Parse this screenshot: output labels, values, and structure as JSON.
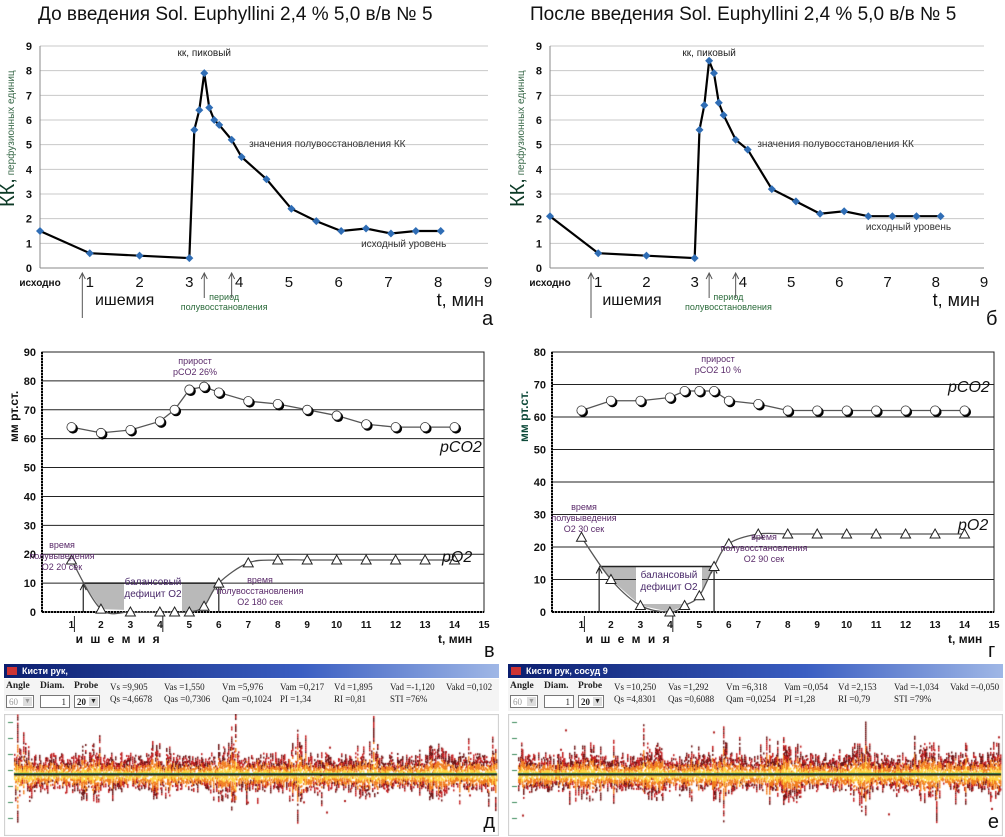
{
  "titles": {
    "left": "До введения Sol. Euphyllini 2,4 % 5,0 в/в № 5",
    "right": "После введения Sol. Euphyllini 2,4 % 5,0 в/в № 5"
  },
  "chart_data": [
    {
      "id": "a",
      "type": "line",
      "panel_letter": "а",
      "ylabel": "КК,",
      "ylabel_sub": "перфузионных единиц",
      "xlabel": "t, мин",
      "ylim": [
        0,
        9
      ],
      "xlim": [
        0,
        9
      ],
      "yticks": [
        "0",
        "1",
        "2",
        "3",
        "4",
        "5",
        "6",
        "7",
        "8",
        "9"
      ],
      "xticks": [
        "исходно",
        "1",
        "2",
        "3",
        "4",
        "5",
        "6",
        "7",
        "8",
        "9"
      ],
      "grid": true,
      "x": [
        0,
        1,
        2,
        3,
        3.1,
        3.2,
        3.3,
        3.4,
        3.5,
        3.6,
        3.85,
        4.05,
        4.55,
        5.05,
        5.55,
        6.05,
        6.55,
        7.05,
        7.55,
        8.05
      ],
      "y": [
        1.5,
        0.6,
        0.5,
        0.4,
        5.6,
        6.4,
        7.9,
        6.5,
        6.0,
        5.8,
        5.2,
        4.5,
        3.6,
        2.4,
        1.9,
        1.5,
        1.6,
        1.4,
        1.5,
        1.5
      ],
      "annotations": {
        "peak": "кк, пиковый",
        "half": "значения полувосстановления КК",
        "baseline": "исходный уровень",
        "ischemia": "ишемия",
        "period1": "период",
        "period2": "полувосстановления"
      }
    },
    {
      "id": "b",
      "type": "line",
      "panel_letter": "б",
      "ylabel": "КК,",
      "ylabel_sub": "перфузионных единиц",
      "xlabel": "t, мин",
      "ylim": [
        0,
        9
      ],
      "xlim": [
        0,
        9
      ],
      "yticks": [
        "0",
        "1",
        "2",
        "3",
        "4",
        "5",
        "6",
        "7",
        "8",
        "9"
      ],
      "xticks": [
        "исходно",
        "1",
        "2",
        "3",
        "4",
        "5",
        "6",
        "7",
        "8",
        "9"
      ],
      "grid": true,
      "x": [
        0,
        1,
        2,
        3,
        3.1,
        3.2,
        3.3,
        3.4,
        3.5,
        3.6,
        3.85,
        4.1,
        4.6,
        5.1,
        5.6,
        6.1,
        6.6,
        7.1,
        7.6,
        8.1
      ],
      "y": [
        2.1,
        0.6,
        0.5,
        0.4,
        5.6,
        6.6,
        8.4,
        7.9,
        6.7,
        6.2,
        5.2,
        4.8,
        3.2,
        2.7,
        2.2,
        2.3,
        2.1,
        2.1,
        2.1,
        2.1
      ],
      "annotations": {
        "peak": "кк, пиковый",
        "half": "значения полувосстановления КК",
        "baseline": "исходный уровень",
        "ischemia": "ишемия",
        "period1": "период",
        "period2": "полувосстановления"
      }
    },
    {
      "id": "v",
      "type": "line",
      "panel_letter": "в",
      "ylabel": "мм рт.ст.",
      "xlabel": "t, мин",
      "ylim": [
        0,
        90
      ],
      "xlim": [
        0,
        15
      ],
      "yticks": [
        "0",
        "10",
        "20",
        "30",
        "40",
        "50",
        "60",
        "70",
        "80",
        "90"
      ],
      "xticks": [
        "1",
        "2",
        "3",
        "4",
        "5",
        "6",
        "7",
        "8",
        "9",
        "10",
        "11",
        "12",
        "13",
        "14",
        "15"
      ],
      "grid": true,
      "series": [
        {
          "name": "pCO2",
          "x": [
            1,
            2,
            3,
            4,
            4.5,
            5,
            5.5,
            6,
            7,
            8,
            9,
            10,
            11,
            12,
            13,
            14
          ],
          "y": [
            64,
            62,
            63,
            66,
            70,
            77,
            78,
            76,
            73,
            72,
            70,
            68,
            65,
            64,
            64,
            64
          ]
        },
        {
          "name": "pO2",
          "x": [
            1,
            2,
            3,
            4,
            4.5,
            5,
            5.5,
            6,
            7,
            8,
            9,
            10,
            11,
            12,
            13,
            14
          ],
          "y": [
            18,
            1,
            0,
            0,
            0,
            0,
            2,
            10,
            17,
            18,
            18,
            18,
            18,
            18,
            18,
            18
          ]
        }
      ],
      "annotations": {
        "growth1": "прирост",
        "growth2": "pCO2 26%",
        "halfout1": "время",
        "halfout2": "полувыведения",
        "halfout3": "O2  20 сек",
        "deficit1": "балансовый",
        "deficit2": "дефицит O2",
        "halfrec1": "время",
        "halfrec2": "полувосстановления",
        "halfrec3": "O2  180 сек",
        "ischemia": "и ш е м и я",
        "pco2": "pCO2",
        "po2": "pO2"
      }
    },
    {
      "id": "g",
      "type": "line",
      "panel_letter": "г",
      "ylabel": "мм рт.ст.",
      "xlabel": "t, мин",
      "ylim": [
        0,
        80
      ],
      "xlim": [
        0,
        15
      ],
      "yticks": [
        "0",
        "10",
        "20",
        "30",
        "40",
        "50",
        "60",
        "70",
        "80"
      ],
      "xticks": [
        "1",
        "2",
        "3",
        "4",
        "5",
        "6",
        "7",
        "8",
        "9",
        "10",
        "11",
        "12",
        "13",
        "14",
        "15"
      ],
      "grid": true,
      "series": [
        {
          "name": "pCO2",
          "x": [
            1,
            2,
            3,
            4,
            4.5,
            5,
            5.5,
            6,
            7,
            8,
            9,
            10,
            11,
            12,
            13,
            14
          ],
          "y": [
            62,
            65,
            65,
            66,
            68,
            68,
            68,
            65,
            64,
            62,
            62,
            62,
            62,
            62,
            62,
            62
          ]
        },
        {
          "name": "pO2",
          "x": [
            1,
            2,
            3,
            4,
            4.5,
            5,
            5.5,
            6,
            7,
            8,
            9,
            10,
            11,
            12,
            13,
            14
          ],
          "y": [
            23,
            10,
            2,
            0,
            2,
            5,
            14,
            21,
            24,
            24,
            24,
            24,
            24,
            24,
            24,
            24
          ]
        }
      ],
      "annotations": {
        "growth1": "прирост",
        "growth2": "pCO2 10 %",
        "halfout1": "время",
        "halfout2": "полувыведения",
        "halfout3": "O2  30 сек",
        "deficit1": "балансовый",
        "deficit2": "дефицит O2",
        "halfrec1": "время",
        "halfrec2": "полувосстановления",
        "halfrec3": "O2  90 сек",
        "ischemia": "и ш е м и я",
        "pco2": "pCO2",
        "po2": "pO2"
      }
    }
  ],
  "doppler": [
    {
      "panel_letter": "д",
      "window_title": "Кисти рук,",
      "angle_label": "Angle",
      "angle_value": "60",
      "diam_label": "Diam.",
      "diam_value": "1",
      "probe_label": "Probe",
      "probe_value": "20",
      "params_row1": [
        "Vs =9,905",
        "Vas =1,550",
        "Vm =5,976",
        "Vam =0,217",
        "Vd =1,895",
        "Vad =-1,120",
        "Vakd =0,102"
      ],
      "params_row2": [
        "Qs =4,6678",
        "Qas =0,7306",
        "Qam =0,1024",
        "PI =1,34",
        "RI =0,81",
        "STI =76%"
      ]
    },
    {
      "panel_letter": "е",
      "window_title": "Кисти рук, сосуд 9",
      "angle_label": "Angle",
      "angle_value": "60",
      "diam_label": "Diam.",
      "diam_value": "1",
      "probe_label": "Probe",
      "probe_value": "20",
      "params_row1": [
        "Vs =10,250",
        "Vas =1,292",
        "Vm =6,318",
        "Vam =0,054",
        "Vd =2,153",
        "Vad =-1,034",
        "Vakd =-0,050"
      ],
      "params_row2": [
        "Qs =4,8301",
        "Qas =0,6088",
        "Qam =0,0254",
        "PI =1,28",
        "RI =0,79",
        "STI =79%"
      ]
    }
  ]
}
